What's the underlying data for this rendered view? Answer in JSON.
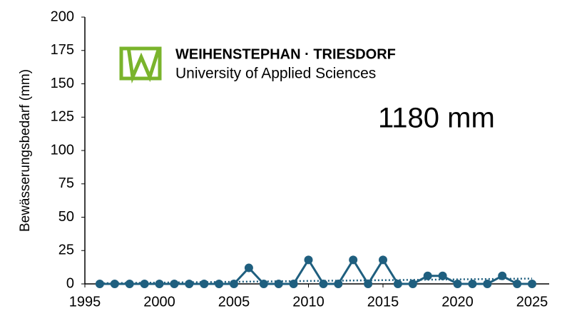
{
  "chart_data": {
    "type": "line",
    "y_label": "Bewässerungsbedarf (mm)",
    "annotation": "1180 mm",
    "logo": {
      "line1": "WEIHENSTEPHAN · TRIESDORF",
      "line2": "University of Applied Sciences",
      "color": "#7ab42c"
    },
    "x": [
      1996,
      1997,
      1998,
      1999,
      2000,
      2001,
      2002,
      2003,
      2004,
      2005,
      2006,
      2007,
      2008,
      2009,
      2010,
      2011,
      2012,
      2013,
      2014,
      2015,
      2016,
      2017,
      2018,
      2019,
      2020,
      2021,
      2022,
      2023,
      2024,
      2025
    ],
    "series": [
      {
        "color": "#1f5f7f",
        "values": [
          0,
          0,
          0,
          0,
          0,
          0,
          0,
          0,
          0,
          0,
          12,
          0,
          0,
          0,
          18,
          0,
          0,
          18,
          0,
          18,
          0,
          0,
          6,
          6,
          0,
          0,
          0,
          6,
          0,
          0
        ]
      }
    ],
    "trend": {
      "color": "#1f5f7f",
      "x": [
        1996,
        2025
      ],
      "values": [
        0.5,
        4
      ]
    },
    "xlim": [
      1995,
      2025
    ],
    "xticks": [
      1995,
      2000,
      2005,
      2010,
      2015,
      2020,
      2025
    ],
    "ylim": [
      0,
      200
    ],
    "yticks": [
      0,
      25,
      50,
      75,
      100,
      125,
      150,
      175,
      200
    ]
  }
}
